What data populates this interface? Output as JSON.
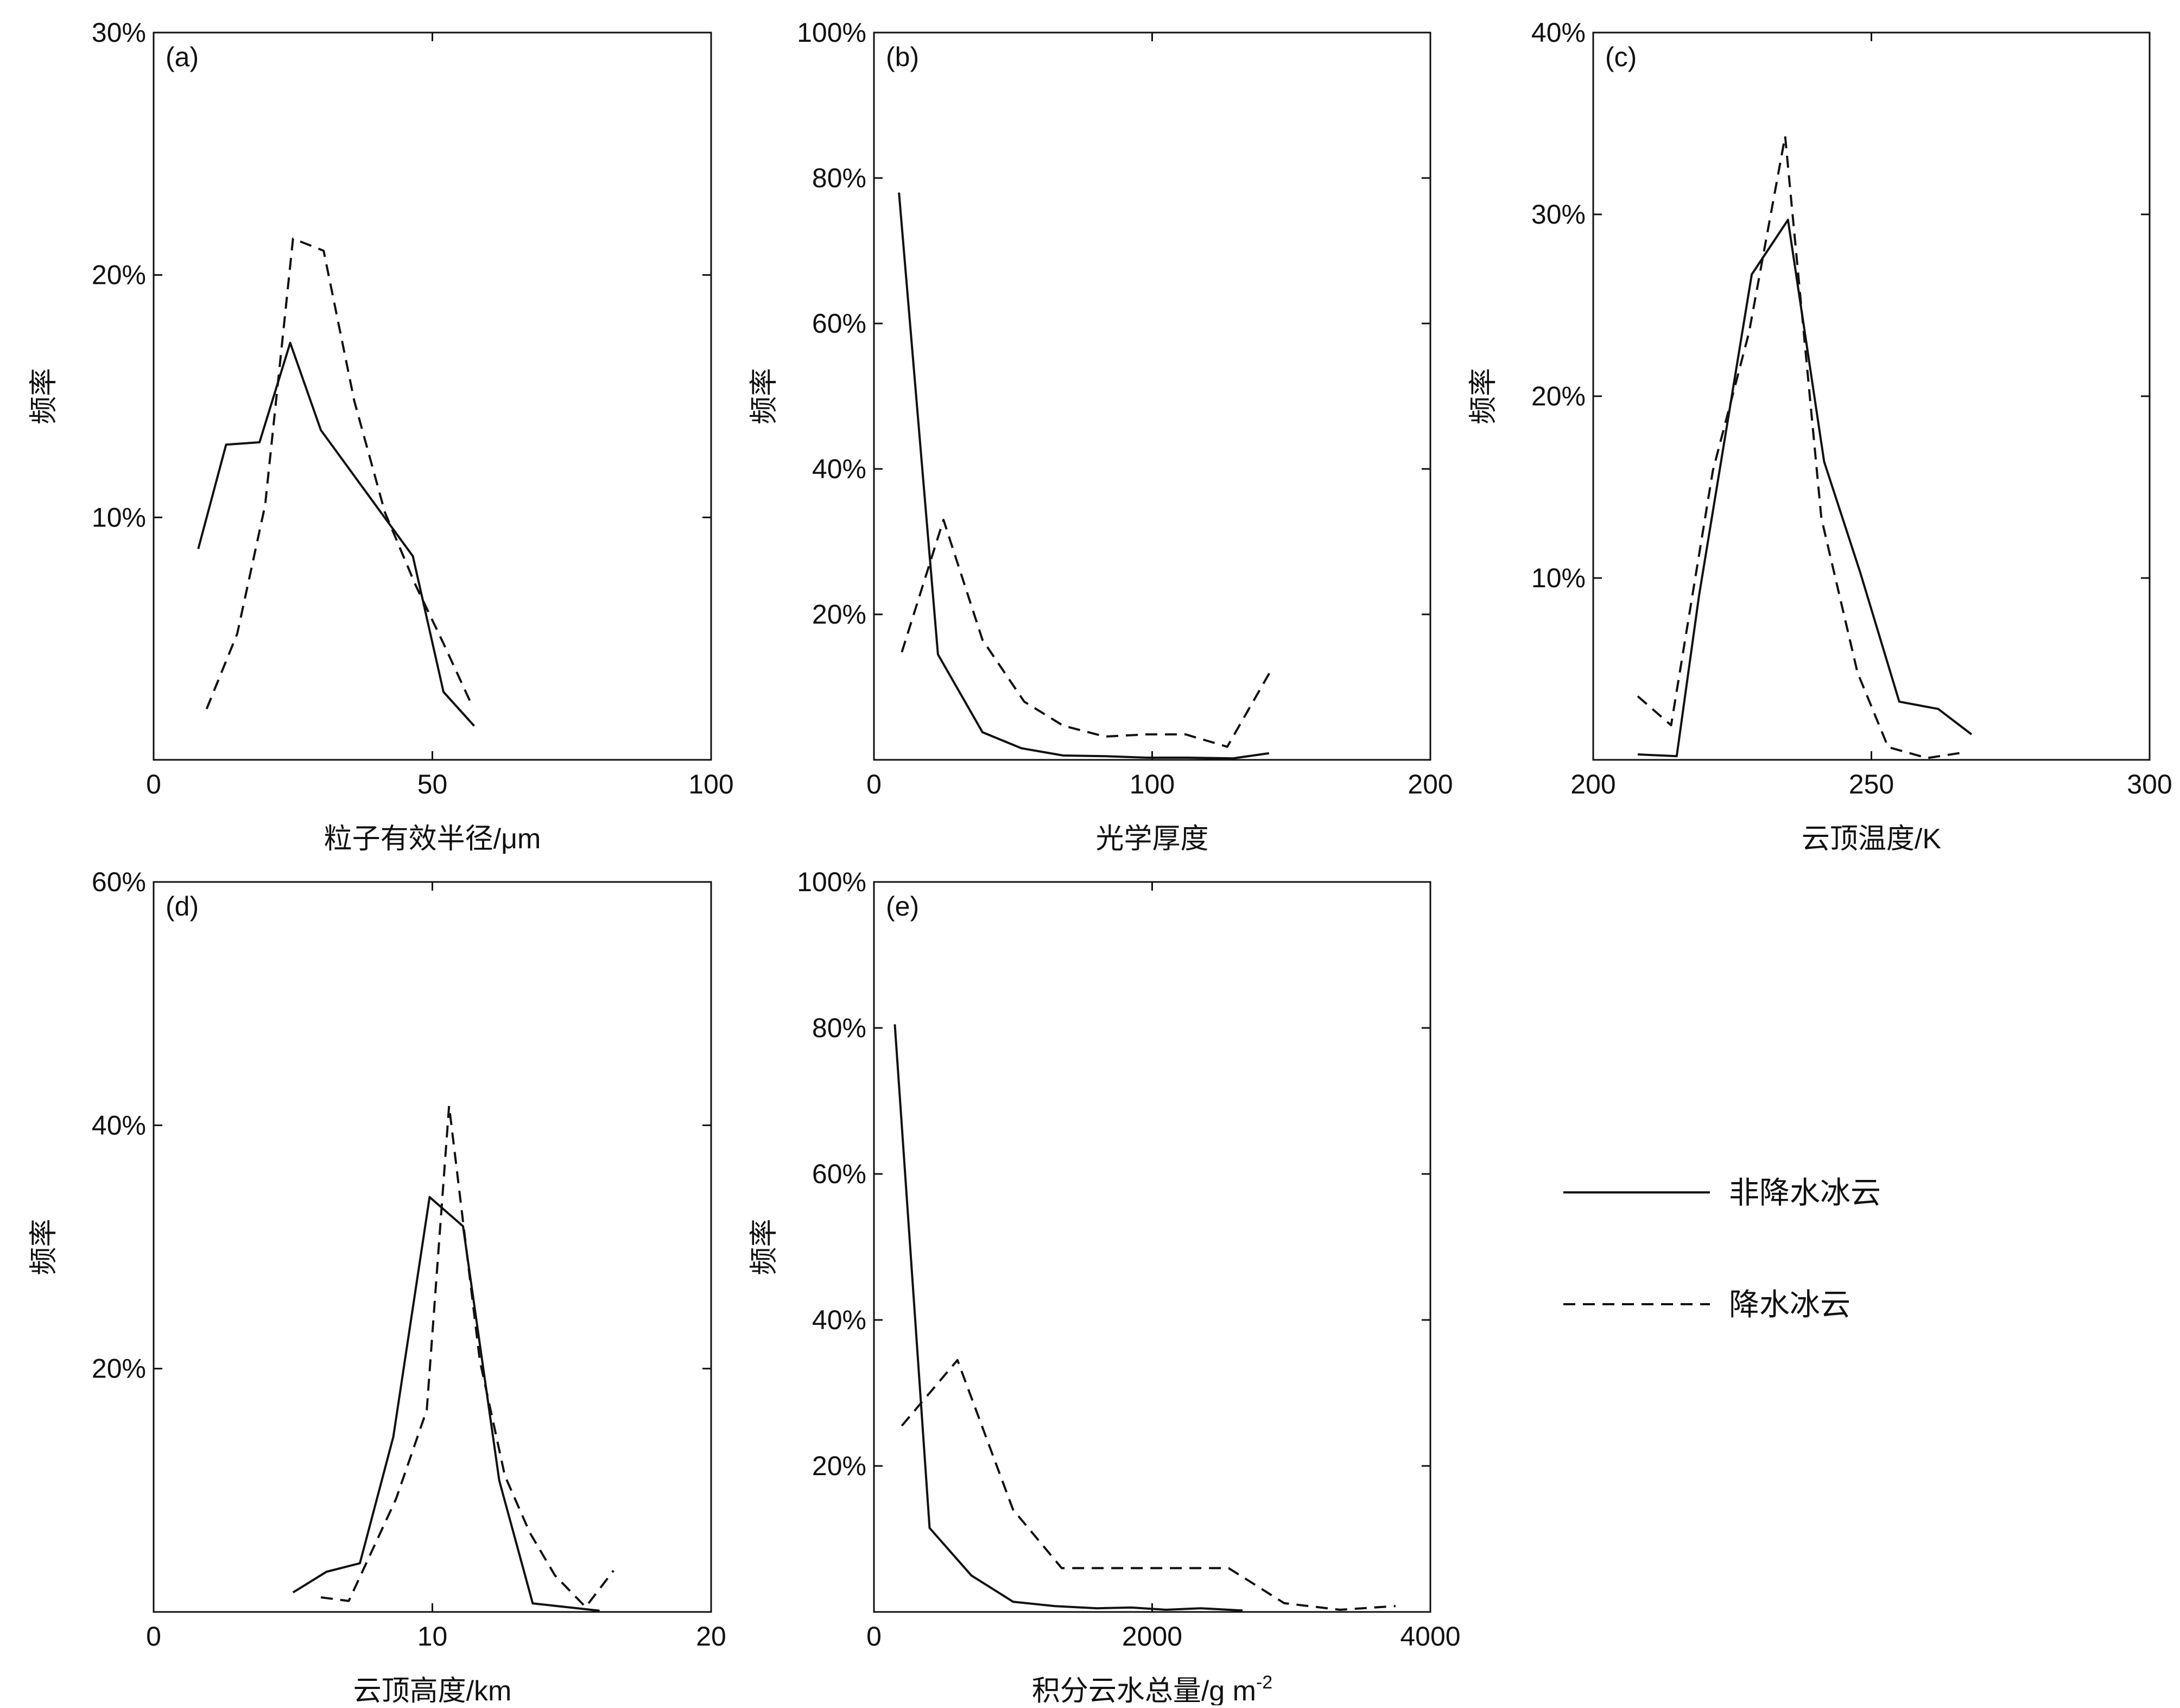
{
  "legend": {
    "items": [
      {
        "label": "非降水冰云",
        "style": "solid"
      },
      {
        "label": "降水冰云",
        "style": "dashed"
      }
    ]
  },
  "chart_data": [
    {
      "type": "line",
      "panel": "(a)",
      "xlabel": "粒子有效半径/μm",
      "ylabel": "频率",
      "xlim": [
        0,
        100
      ],
      "ylim": [
        0,
        30
      ],
      "xticks": [
        0,
        50,
        100
      ],
      "yticks": [
        10,
        20,
        30
      ],
      "ytick_labels": [
        "10%",
        "20%",
        "30%"
      ],
      "series": [
        {
          "name": "非降水冰云",
          "style": "solid",
          "x": [
            8,
            13,
            19,
            24.5,
            30,
            46.5,
            52,
            57.5
          ],
          "y": [
            8.7,
            13.0,
            13.1,
            17.2,
            13.6,
            8.4,
            2.8,
            1.4
          ]
        },
        {
          "name": "降水冰云",
          "style": "dashed",
          "x": [
            9.5,
            15,
            20,
            25,
            30.5,
            36,
            41.5,
            47,
            52,
            57
          ],
          "y": [
            2.1,
            5.2,
            10.5,
            21.5,
            21.0,
            14.8,
            10.2,
            7.2,
            4.8,
            2.3
          ]
        }
      ]
    },
    {
      "type": "line",
      "panel": "(b)",
      "xlabel": "光学厚度",
      "ylabel": "频率",
      "xlim": [
        0,
        200
      ],
      "ylim": [
        0,
        100
      ],
      "xticks": [
        0,
        100,
        200
      ],
      "yticks": [
        20,
        40,
        60,
        80,
        100
      ],
      "ytick_labels": [
        "20%",
        "40%",
        "60%",
        "80%",
        "100%"
      ],
      "series": [
        {
          "name": "非降水冰云",
          "style": "solid",
          "x": [
            9,
            23,
            39,
            53,
            68,
            83,
            98,
            113,
            129,
            142
          ],
          "y": [
            78,
            14.5,
            3.8,
            1.6,
            0.6,
            0.5,
            0.3,
            0.3,
            0.2,
            0.9
          ]
        },
        {
          "name": "降水冰云",
          "style": "dashed",
          "x": [
            10,
            25,
            39,
            54,
            68,
            83,
            98,
            112,
            127,
            143
          ],
          "y": [
            14.8,
            33.0,
            16.5,
            8.0,
            4.7,
            3.2,
            3.5,
            3.5,
            1.8,
            12.5
          ]
        }
      ]
    },
    {
      "type": "line",
      "panel": "(c)",
      "xlabel": "云顶温度/K",
      "ylabel": "频率",
      "xlim": [
        200,
        300
      ],
      "ylim": [
        0,
        40
      ],
      "xticks": [
        200,
        250,
        300
      ],
      "yticks": [
        10,
        20,
        30,
        40
      ],
      "ytick_labels": [
        "10%",
        "20%",
        "30%",
        "40%"
      ],
      "series": [
        {
          "name": "非降水冰云",
          "style": "solid",
          "x": [
            208,
            215,
            219,
            228.5,
            235,
            241.5,
            248,
            255,
            262,
            268
          ],
          "y": [
            0.3,
            0.2,
            9.0,
            26.7,
            29.7,
            16.4,
            10.3,
            3.2,
            2.8,
            1.4
          ]
        },
        {
          "name": "降水冰云",
          "style": "dashed",
          "x": [
            208,
            214,
            221.5,
            228,
            234.5,
            241,
            247.5,
            253,
            260,
            266.5
          ],
          "y": [
            3.5,
            1.9,
            15.9,
            23.5,
            34.3,
            13.3,
            4.8,
            0.7,
            0.1,
            0.4
          ]
        }
      ]
    },
    {
      "type": "line",
      "panel": "(d)",
      "xlabel": "云顶高度/km",
      "ylabel": "频率",
      "xlim": [
        0,
        20
      ],
      "ylim": [
        0,
        60
      ],
      "xticks": [
        0,
        10,
        20
      ],
      "yticks": [
        20,
        40,
        60
      ],
      "ytick_labels": [
        "20%",
        "40%",
        "60%"
      ],
      "series": [
        {
          "name": "非降水冰云",
          "style": "solid",
          "x": [
            5,
            6.2,
            7.4,
            8.6,
            9.9,
            11.1,
            12.4,
            13.6,
            14.8,
            16
          ],
          "y": [
            1.6,
            3.3,
            4.0,
            14.4,
            34.1,
            31.7,
            10.8,
            0.7,
            0.4,
            0.1
          ]
        },
        {
          "name": "降水冰云",
          "style": "dashed",
          "x": [
            6,
            7,
            8.7,
            9.8,
            10.6,
            11.7,
            12.6,
            13.5,
            14.4,
            15.5,
            16.5
          ],
          "y": [
            1.2,
            0.9,
            9.3,
            16.6,
            41.6,
            20.7,
            11.2,
            6.5,
            3.0,
            0.4,
            3.4
          ]
        }
      ]
    },
    {
      "type": "line",
      "panel": "(e)",
      "xlabel": "积分云水总量/g m",
      "xlabel_superscript": "-2",
      "ylabel": "频率",
      "xlim": [
        0,
        4000
      ],
      "ylim": [
        0,
        100
      ],
      "xticks": [
        0,
        2000,
        4000
      ],
      "yticks": [
        20,
        40,
        60,
        80,
        100
      ],
      "ytick_labels": [
        "20%",
        "40%",
        "60%",
        "80%",
        "100%"
      ],
      "series": [
        {
          "name": "非降水冰云",
          "style": "solid",
          "x": [
            150,
            400,
            700,
            1000,
            1300,
            1600,
            1850,
            2100,
            2350,
            2650
          ],
          "y": [
            80.5,
            11.5,
            5.0,
            1.4,
            0.8,
            0.5,
            0.6,
            0.3,
            0.5,
            0.2
          ]
        },
        {
          "name": "降水冰云",
          "style": "dashed",
          "x": [
            200,
            600,
            1000,
            1350,
            1700,
            2000,
            2250,
            2550,
            2950,
            3350,
            3750
          ],
          "y": [
            25.5,
            34.5,
            14.0,
            6.0,
            6.0,
            6.0,
            6.0,
            6.0,
            1.2,
            0.3,
            0.8
          ]
        }
      ]
    }
  ]
}
